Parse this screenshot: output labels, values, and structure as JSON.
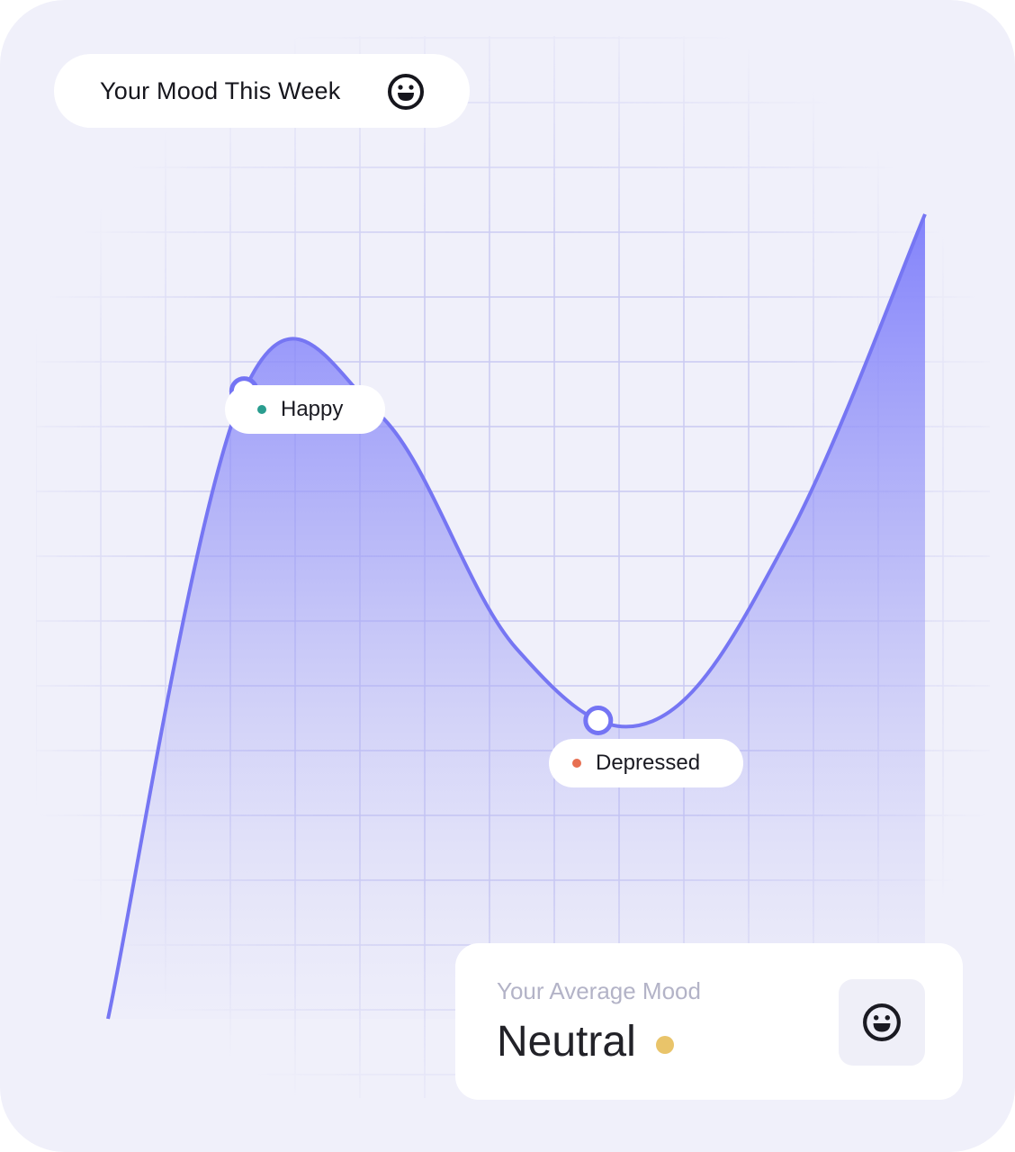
{
  "title": "Your Mood This Week",
  "title_icon": "smiley-face-icon",
  "chart_data": {
    "type": "area",
    "title": "Your Mood This Week",
    "x": [
      0,
      1,
      2,
      3,
      4,
      5,
      6
    ],
    "values": [
      0.0,
      0.78,
      0.75,
      0.46,
      0.37,
      0.6,
      1.0
    ],
    "ylim": [
      0,
      1
    ],
    "grid": true,
    "annotations": [
      {
        "label": "Happy",
        "x": 1,
        "value": 0.78,
        "dot_color": "#2a9d8f"
      },
      {
        "label": "Depressed",
        "x": 3.6,
        "value": 0.37,
        "dot_color": "#e76f51"
      }
    ],
    "line_color": "#7676f3"
  },
  "summary": {
    "label": "Your Average Mood",
    "value": "Neutral",
    "dot_color": "#e9c46a",
    "icon": "smiley-face-icon"
  }
}
